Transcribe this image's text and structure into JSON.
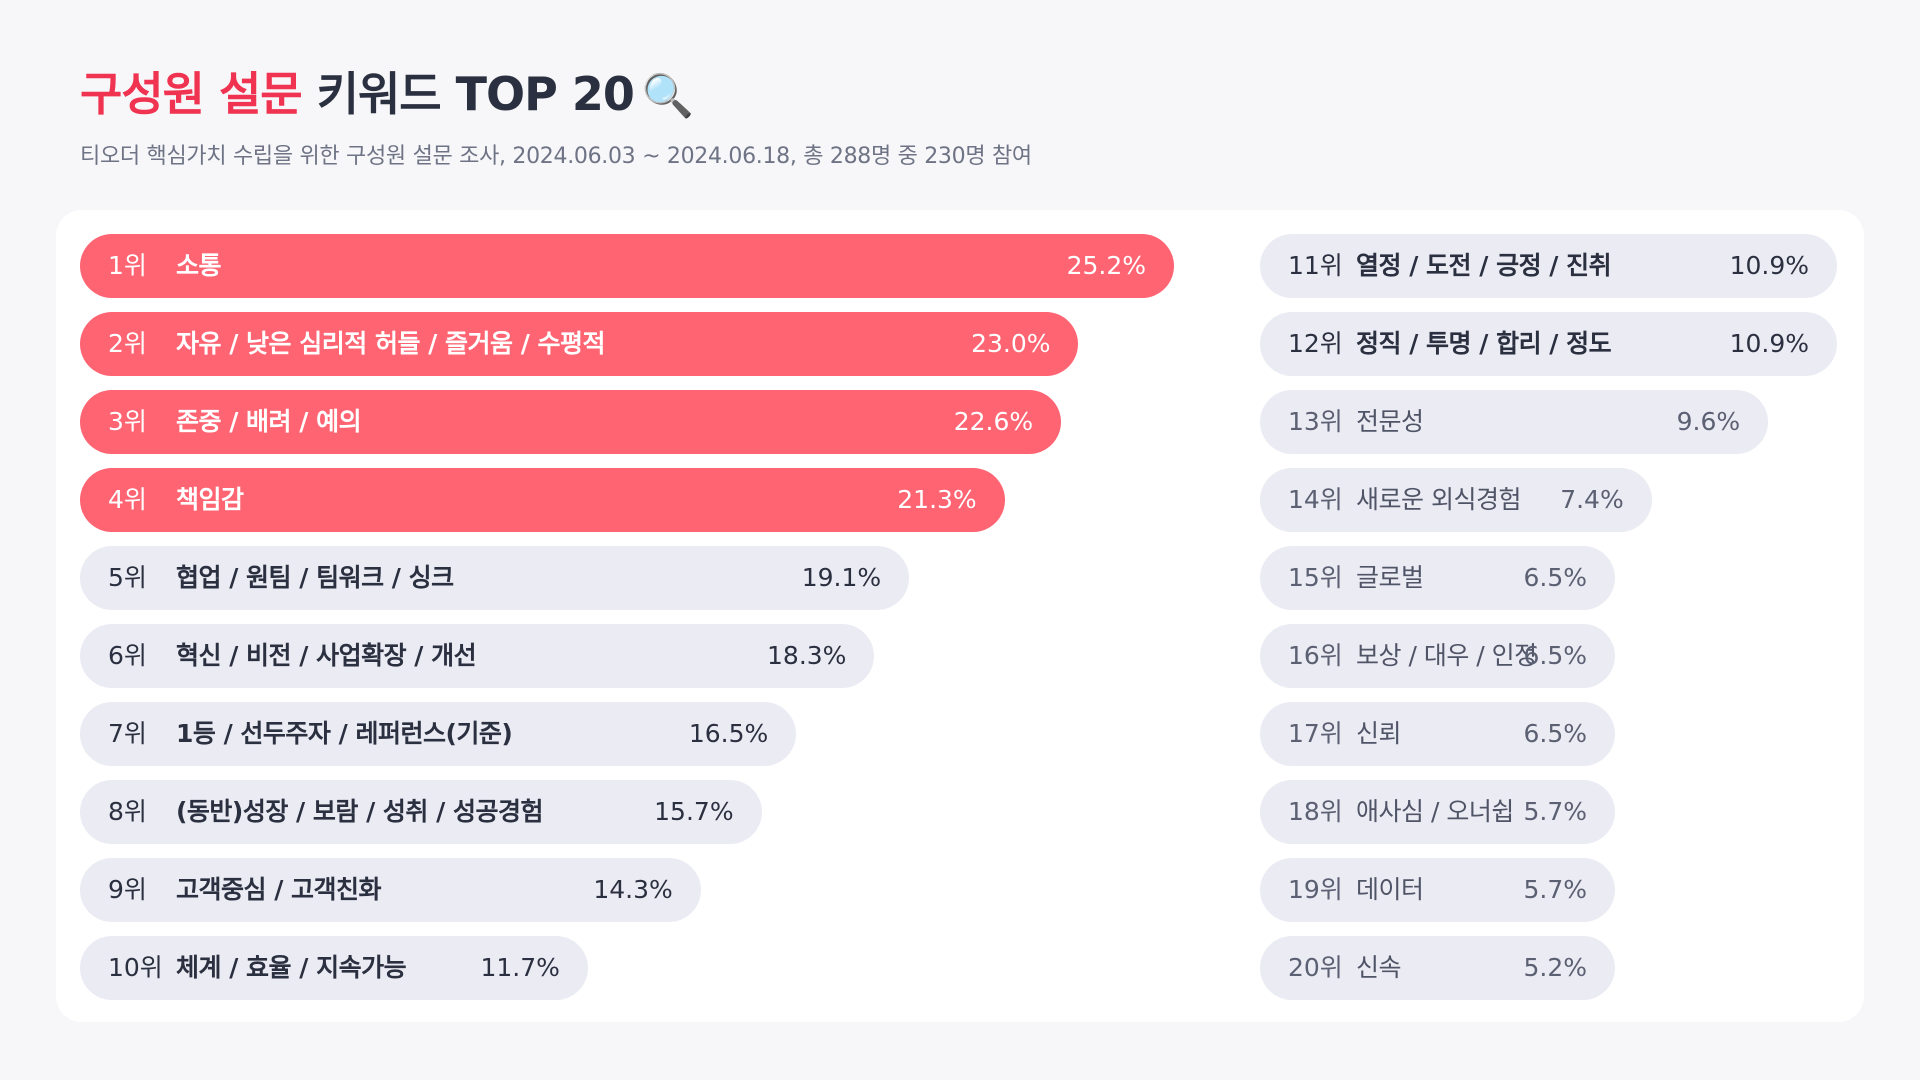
{
  "header": {
    "title_accent": "구성원 설문",
    "title_rest": " 키워드 TOP 20",
    "title_icon": "magnifier-icon",
    "title_emoji": "🔍",
    "subtitle": "티오더 핵심가치 수립을 위한 구성원 설문 조사, 2024.06.03 ~ 2024.06.18, 총 288명 중 230명 참여"
  },
  "colors": {
    "accent": "#ef3350",
    "highlight_bar": "#ff6473",
    "default_bar": "#ebebf3",
    "card_bg": "#ffffff",
    "page_bg": "#f7f7f9"
  },
  "chart_data": {
    "type": "bar",
    "orientation": "horizontal",
    "title": "구성원 설문 키워드 TOP 20",
    "subtitle": "티오더 핵심가치 수립을 위한 구성원 설문 조사, 2024.06.03 ~ 2024.06.18, 총 288명 중 230명 참여",
    "unit": "%",
    "highlight_top": 4,
    "items": [
      {
        "rank": "1위",
        "label": "소통",
        "value": 25.2,
        "value_label": "25.2%"
      },
      {
        "rank": "2위",
        "label": "자유 / 낮은 심리적 허들 / 즐거움 / 수평적",
        "value": 23.0,
        "value_label": "23.0%"
      },
      {
        "rank": "3위",
        "label": "존중 / 배려 / 예의",
        "value": 22.6,
        "value_label": "22.6%"
      },
      {
        "rank": "4위",
        "label": "책임감",
        "value": 21.3,
        "value_label": "21.3%"
      },
      {
        "rank": "5위",
        "label": "협업 / 원팀 / 팀워크 / 싱크",
        "value": 19.1,
        "value_label": "19.1%"
      },
      {
        "rank": "6위",
        "label": "혁신 / 비전 / 사업확장 / 개선",
        "value": 18.3,
        "value_label": "18.3%"
      },
      {
        "rank": "7위",
        "label": "1등 / 선두주자 / 레퍼런스(기준)",
        "value": 16.5,
        "value_label": "16.5%"
      },
      {
        "rank": "8위",
        "label": "(동반)성장 / 보람 / 성취 / 성공경험",
        "value": 15.7,
        "value_label": "15.7%"
      },
      {
        "rank": "9위",
        "label": "고객중심 / 고객친화",
        "value": 14.3,
        "value_label": "14.3%"
      },
      {
        "rank": "10위",
        "label": "체계 / 효율 / 지속가능",
        "value": 11.7,
        "value_label": "11.7%"
      },
      {
        "rank": "11위",
        "label": "열정 / 도전 / 긍정 / 진취",
        "value": 10.9,
        "value_label": "10.9%"
      },
      {
        "rank": "12위",
        "label": "정직 / 투명 / 합리 / 정도",
        "value": 10.9,
        "value_label": "10.9%"
      },
      {
        "rank": "13위",
        "label": "전문성",
        "value": 9.6,
        "value_label": "9.6%"
      },
      {
        "rank": "14위",
        "label": "새로운 외식경험",
        "value": 7.4,
        "value_label": "7.4%"
      },
      {
        "rank": "15위",
        "label": "글로벌",
        "value": 6.5,
        "value_label": "6.5%"
      },
      {
        "rank": "16위",
        "label": "보상 / 대우 / 인정",
        "value": 6.5,
        "value_label": "6.5%"
      },
      {
        "rank": "17위",
        "label": "신뢰",
        "value": 6.5,
        "value_label": "6.5%"
      },
      {
        "rank": "18위",
        "label": "애사심 / 오너쉽",
        "value": 5.7,
        "value_label": "5.7%"
      },
      {
        "rank": "19위",
        "label": "데이터",
        "value": 5.7,
        "value_label": "5.7%"
      },
      {
        "rank": "20위",
        "label": "신속",
        "value": 5.2,
        "value_label": "5.2%"
      }
    ]
  }
}
